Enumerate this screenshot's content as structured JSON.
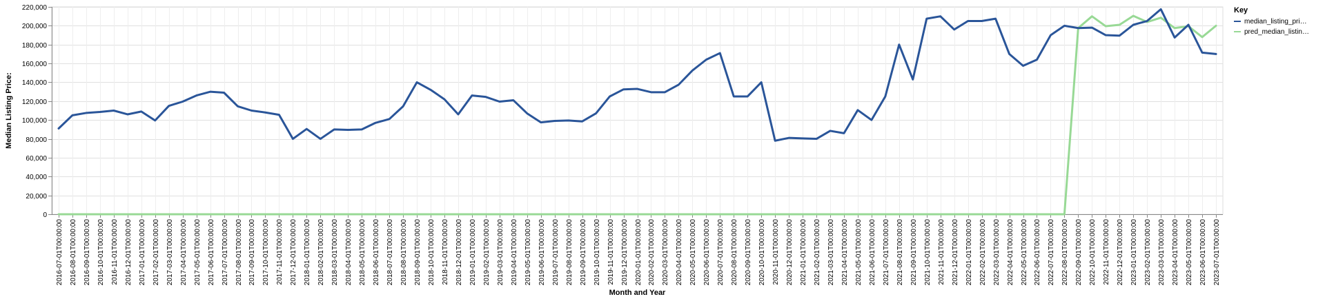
{
  "chart_data": {
    "type": "line",
    "xlabel": "Month and Year",
    "ylabel": "Median Listing Price:",
    "ylim": [
      0,
      220000
    ],
    "y_ticks": [
      "0",
      "20,000",
      "40,000",
      "60,000",
      "80,000",
      "100,000",
      "120,000",
      "140,000",
      "160,000",
      "180,000",
      "200,000",
      "220,000"
    ],
    "grid": true,
    "legend": {
      "title": "Key",
      "position": "top-right"
    },
    "x": [
      "2016-07-01T00:00:00",
      "2016-08-01T00:00:00",
      "2016-09-01T00:00:00",
      "2016-10-01T00:00:00",
      "2016-11-01T00:00:00",
      "2016-12-01T00:00:00",
      "2017-01-01T00:00:00",
      "2017-02-01T00:00:00",
      "2017-03-01T00:00:00",
      "2017-04-01T00:00:00",
      "2017-05-01T00:00:00",
      "2017-06-01T00:00:00",
      "2017-07-01T00:00:00",
      "2017-08-01T00:00:00",
      "2017-09-01T00:00:00",
      "2017-10-01T00:00:00",
      "2017-11-01T00:00:00",
      "2017-12-01T00:00:00",
      "2018-01-01T00:00:00",
      "2018-02-01T00:00:00",
      "2018-03-01T00:00:00",
      "2018-04-01T00:00:00",
      "2018-05-01T00:00:00",
      "2018-06-01T00:00:00",
      "2018-07-01T00:00:00",
      "2018-08-01T00:00:00",
      "2018-09-01T00:00:00",
      "2018-10-01T00:00:00",
      "2018-11-01T00:00:00",
      "2018-12-01T00:00:00",
      "2019-01-01T00:00:00",
      "2019-02-01T00:00:00",
      "2019-03-01T00:00:00",
      "2019-04-01T00:00:00",
      "2019-05-01T00:00:00",
      "2019-06-01T00:00:00",
      "2019-07-01T00:00:00",
      "2019-08-01T00:00:00",
      "2019-09-01T00:00:00",
      "2019-10-01T00:00:00",
      "2019-11-01T00:00:00",
      "2019-12-01T00:00:00",
      "2020-01-01T00:00:00",
      "2020-02-01T00:00:00",
      "2020-03-01T00:00:00",
      "2020-04-01T00:00:00",
      "2020-05-01T00:00:00",
      "2020-06-01T00:00:00",
      "2020-07-01T00:00:00",
      "2020-08-01T00:00:00",
      "2020-09-01T00:00:00",
      "2020-10-01T00:00:00",
      "2020-11-01T00:00:00",
      "2020-12-01T00:00:00",
      "2021-01-01T00:00:00",
      "2021-02-01T00:00:00",
      "2021-03-01T00:00:00",
      "2021-04-01T00:00:00",
      "2021-05-01T00:00:00",
      "2021-06-01T00:00:00",
      "2021-07-01T00:00:00",
      "2021-08-01T00:00:00",
      "2021-09-01T00:00:00",
      "2021-10-01T00:00:00",
      "2021-11-01T00:00:00",
      "2021-12-01T00:00:00",
      "2022-01-01T00:00:00",
      "2022-02-01T00:00:00",
      "2022-03-01T00:00:00",
      "2022-04-01T00:00:00",
      "2022-05-01T00:00:00",
      "2022-06-01T00:00:00",
      "2022-07-01T00:00:00",
      "2022-08-01T00:00:00",
      "2022-09-01T00:00:00",
      "2022-10-01T00:00:00",
      "2022-11-01T00:00:00",
      "2022-12-01T00:00:00",
      "2023-01-01T00:00:00",
      "2023-02-01T00:00:00",
      "2023-03-01T00:00:00",
      "2023-04-01T00:00:00",
      "2023-05-01T00:00:00",
      "2023-06-01T00:00:00",
      "2023-07-01T00:00:00"
    ],
    "series": [
      {
        "name": "median_listing_pri…",
        "color": "#2a5599",
        "values": [
          91000,
          105000,
          107500,
          108500,
          110000,
          106000,
          109000,
          99500,
          115000,
          119500,
          126000,
          130000,
          129000,
          114500,
          110000,
          108000,
          105500,
          80000,
          90500,
          80000,
          90000,
          89500,
          90000,
          97000,
          101000,
          114500,
          140000,
          132000,
          122000,
          106000,
          126000,
          124500,
          119500,
          121000,
          107000,
          97500,
          99000,
          99500,
          98500,
          107000,
          125000,
          132500,
          133000,
          129500,
          129500,
          137500,
          152500,
          164000,
          171000,
          125000,
          125000,
          140000,
          78000,
          81000,
          80500,
          80000,
          88500,
          86000,
          110500,
          100000,
          125000,
          180000,
          143000,
          207500,
          210000,
          196000,
          205000,
          205000,
          207500,
          170000,
          157500,
          164000,
          190000,
          200000,
          197500,
          198000,
          190000,
          189500,
          201000,
          205000,
          217500,
          187500,
          201000,
          171500,
          170000
        ]
      },
      {
        "name": "pred_median_listin…",
        "color": "#98d995",
        "values": [
          0,
          0,
          0,
          0,
          0,
          0,
          0,
          0,
          0,
          0,
          0,
          0,
          0,
          0,
          0,
          0,
          0,
          0,
          0,
          0,
          0,
          0,
          0,
          0,
          0,
          0,
          0,
          0,
          0,
          0,
          0,
          0,
          0,
          0,
          0,
          0,
          0,
          0,
          0,
          0,
          0,
          0,
          0,
          0,
          0,
          0,
          0,
          0,
          0,
          0,
          0,
          0,
          0,
          0,
          0,
          0,
          0,
          0,
          0,
          0,
          0,
          0,
          0,
          0,
          0,
          0,
          0,
          0,
          0,
          0,
          0,
          0,
          0,
          0,
          197500,
          210000,
          199500,
          201000,
          210500,
          204000,
          208500,
          197500,
          199500,
          188000,
          200000
        ]
      }
    ]
  }
}
